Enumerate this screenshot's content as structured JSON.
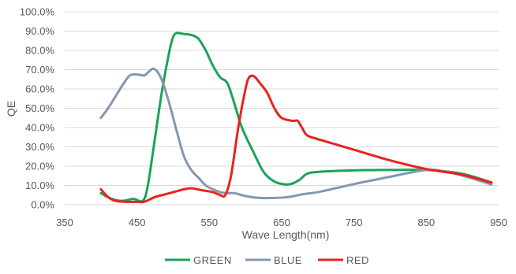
{
  "chart_data": {
    "type": "line",
    "title": "",
    "xlabel": "Wave Length(nm)",
    "ylabel": "QE",
    "xlim": [
      350,
      950
    ],
    "ylim": [
      0,
      100
    ],
    "x_ticks": [
      350,
      450,
      550,
      650,
      750,
      850,
      950
    ],
    "x_tick_labels": [
      "350",
      "450",
      "550",
      "650",
      "750",
      "850",
      "950"
    ],
    "y_ticks": [
      0,
      10,
      20,
      30,
      40,
      50,
      60,
      70,
      80,
      90,
      100
    ],
    "y_tick_labels": [
      "0.0%",
      "10.0%",
      "20.0%",
      "30.0%",
      "40.0%",
      "50.0%",
      "60.0%",
      "70.0%",
      "80.0%",
      "90.0%",
      "100.0%"
    ],
    "grid": "horizontal",
    "legend_position": "bottom",
    "series": [
      {
        "name": "GREEN",
        "color": "#1aa35a",
        "points": [
          [
            400,
            6
          ],
          [
            415,
            3
          ],
          [
            430,
            2
          ],
          [
            445,
            3
          ],
          [
            458,
            2
          ],
          [
            465,
            10
          ],
          [
            475,
            35
          ],
          [
            485,
            60
          ],
          [
            495,
            80
          ],
          [
            500,
            87
          ],
          [
            505,
            89
          ],
          [
            515,
            88.5
          ],
          [
            525,
            88
          ],
          [
            535,
            86
          ],
          [
            545,
            80
          ],
          [
            555,
            72
          ],
          [
            565,
            66
          ],
          [
            575,
            63
          ],
          [
            585,
            52
          ],
          [
            595,
            40
          ],
          [
            610,
            28
          ],
          [
            625,
            17
          ],
          [
            640,
            12
          ],
          [
            655,
            10.5
          ],
          [
            665,
            11
          ],
          [
            675,
            13
          ],
          [
            685,
            16
          ],
          [
            700,
            17
          ],
          [
            750,
            17.8
          ],
          [
            800,
            18
          ],
          [
            850,
            18
          ],
          [
            900,
            16
          ],
          [
            940,
            11.5
          ]
        ]
      },
      {
        "name": "BLUE",
        "color": "#8497b0",
        "points": [
          [
            400,
            45
          ],
          [
            410,
            50
          ],
          [
            420,
            56
          ],
          [
            430,
            62
          ],
          [
            440,
            67
          ],
          [
            450,
            67.5
          ],
          [
            460,
            67
          ],
          [
            465,
            68.5
          ],
          [
            472,
            70.5
          ],
          [
            478,
            69
          ],
          [
            485,
            64
          ],
          [
            495,
            52
          ],
          [
            505,
            38
          ],
          [
            515,
            25
          ],
          [
            525,
            18
          ],
          [
            535,
            14
          ],
          [
            545,
            10
          ],
          [
            555,
            8
          ],
          [
            565,
            6.5
          ],
          [
            575,
            6
          ],
          [
            585,
            6
          ],
          [
            600,
            4.5
          ],
          [
            620,
            3.5
          ],
          [
            640,
            3.5
          ],
          [
            660,
            4
          ],
          [
            680,
            5.5
          ],
          [
            700,
            6.5
          ],
          [
            730,
            9
          ],
          [
            760,
            11.5
          ],
          [
            800,
            14.5
          ],
          [
            850,
            18
          ],
          [
            880,
            17
          ],
          [
            910,
            14
          ],
          [
            940,
            10.5
          ]
        ]
      },
      {
        "name": "RED",
        "color": "#e8231d",
        "points": [
          [
            400,
            8
          ],
          [
            410,
            4
          ],
          [
            420,
            2
          ],
          [
            435,
            1.5
          ],
          [
            450,
            1.5
          ],
          [
            460,
            1.5
          ],
          [
            475,
            4
          ],
          [
            490,
            5.5
          ],
          [
            505,
            7
          ],
          [
            515,
            8
          ],
          [
            525,
            8.5
          ],
          [
            540,
            7.5
          ],
          [
            555,
            6.5
          ],
          [
            565,
            5
          ],
          [
            572,
            5
          ],
          [
            580,
            15
          ],
          [
            590,
            40
          ],
          [
            600,
            60
          ],
          [
            605,
            66
          ],
          [
            612,
            66.5
          ],
          [
            620,
            63
          ],
          [
            630,
            58
          ],
          [
            640,
            50
          ],
          [
            650,
            45
          ],
          [
            665,
            43.5
          ],
          [
            672,
            43.5
          ],
          [
            678,
            40
          ],
          [
            685,
            36
          ],
          [
            700,
            34
          ],
          [
            750,
            28.5
          ],
          [
            800,
            23
          ],
          [
            850,
            18.5
          ],
          [
            900,
            15.5
          ],
          [
            940,
            11.5
          ]
        ]
      }
    ]
  }
}
